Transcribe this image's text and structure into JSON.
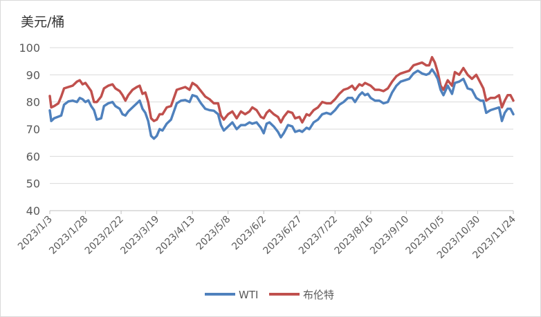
{
  "chart_data": {
    "type": "line",
    "y_unit_label": "美元/桶",
    "ylim": [
      40,
      100
    ],
    "yticks": [
      40,
      50,
      60,
      70,
      80,
      90,
      100
    ],
    "grid": "horizontal",
    "legend_position": "bottom",
    "x_tick_labels": [
      "2023/1/3",
      "2023/1/28",
      "2023/2/22",
      "2023/3/19",
      "2023/4/13",
      "2023/5/8",
      "2023/6/2",
      "2023/6/27",
      "2023/7/22",
      "2023/8/16",
      "2023/9/10",
      "2023/10/5",
      "2023/10/30",
      "2023/11/24"
    ],
    "series": [
      {
        "name": "WTI",
        "color": "#4f81bd",
        "points": [
          [
            "2023/1/3",
            76.9
          ],
          [
            "2023/1/4",
            73.0
          ],
          [
            "2023/1/6",
            74.0
          ],
          [
            "2023/1/9",
            74.6
          ],
          [
            "2023/1/11",
            75.0
          ],
          [
            "2023/1/13",
            79.0
          ],
          [
            "2023/1/16",
            80.2
          ],
          [
            "2023/1/19",
            80.5
          ],
          [
            "2023/1/22",
            80.0
          ],
          [
            "2023/1/24",
            81.5
          ],
          [
            "2023/1/26",
            81.0
          ],
          [
            "2023/1/28",
            80.0
          ],
          [
            "2023/1/30",
            80.6
          ],
          [
            "2023/2/1",
            78.5
          ],
          [
            "2023/2/3",
            77.0
          ],
          [
            "2023/2/5",
            73.5
          ],
          [
            "2023/2/8",
            74.0
          ],
          [
            "2023/2/10",
            78.5
          ],
          [
            "2023/2/13",
            79.5
          ],
          [
            "2023/2/16",
            80.0
          ],
          [
            "2023/2/18",
            78.5
          ],
          [
            "2023/2/21",
            77.5
          ],
          [
            "2023/2/23",
            75.5
          ],
          [
            "2023/2/25",
            75.0
          ],
          [
            "2023/2/27",
            76.5
          ],
          [
            "2023/3/2",
            78.0
          ],
          [
            "2023/3/5",
            79.5
          ],
          [
            "2023/3/7",
            80.5
          ],
          [
            "2023/3/9",
            77.5
          ],
          [
            "2023/3/11",
            76.0
          ],
          [
            "2023/3/13",
            73.0
          ],
          [
            "2023/3/15",
            67.5
          ],
          [
            "2023/3/17",
            66.5
          ],
          [
            "2023/3/19",
            67.5
          ],
          [
            "2023/3/21",
            70.0
          ],
          [
            "2023/3/23",
            69.5
          ],
          [
            "2023/3/26",
            72.0
          ],
          [
            "2023/3/29",
            73.5
          ],
          [
            "2023/4/2",
            79.5
          ],
          [
            "2023/4/5",
            80.5
          ],
          [
            "2023/4/8",
            80.7
          ],
          [
            "2023/4/11",
            80.0
          ],
          [
            "2023/4/13",
            82.5
          ],
          [
            "2023/4/16",
            82.0
          ],
          [
            "2023/4/19",
            79.5
          ],
          [
            "2023/4/22",
            77.5
          ],
          [
            "2023/4/25",
            77.0
          ],
          [
            "2023/4/28",
            76.8
          ],
          [
            "2023/5/1",
            75.5
          ],
          [
            "2023/5/3",
            71.5
          ],
          [
            "2023/5/5",
            69.5
          ],
          [
            "2023/5/8",
            71.0
          ],
          [
            "2023/5/11",
            72.5
          ],
          [
            "2023/5/14",
            70.0
          ],
          [
            "2023/5/17",
            71.5
          ],
          [
            "2023/5/20",
            71.5
          ],
          [
            "2023/5/23",
            72.5
          ],
          [
            "2023/5/25",
            72.0
          ],
          [
            "2023/5/28",
            72.5
          ],
          [
            "2023/5/31",
            70.5
          ],
          [
            "2023/6/2",
            68.5
          ],
          [
            "2023/6/4",
            72.0
          ],
          [
            "2023/6/6",
            72.5
          ],
          [
            "2023/6/9",
            71.0
          ],
          [
            "2023/6/12",
            69.0
          ],
          [
            "2023/6/14",
            67.0
          ],
          [
            "2023/6/16",
            68.5
          ],
          [
            "2023/6/19",
            71.5
          ],
          [
            "2023/6/22",
            71.0
          ],
          [
            "2023/6/24",
            69.0
          ],
          [
            "2023/6/27",
            69.5
          ],
          [
            "2023/6/29",
            69.0
          ],
          [
            "2023/7/2",
            70.5
          ],
          [
            "2023/7/4",
            70.0
          ],
          [
            "2023/7/7",
            72.5
          ],
          [
            "2023/7/10",
            73.5
          ],
          [
            "2023/7/13",
            75.5
          ],
          [
            "2023/7/16",
            76.0
          ],
          [
            "2023/7/19",
            75.5
          ],
          [
            "2023/7/22",
            77.0
          ],
          [
            "2023/7/25",
            79.0
          ],
          [
            "2023/7/28",
            80.0
          ],
          [
            "2023/7/31",
            81.5
          ],
          [
            "2023/8/3",
            81.5
          ],
          [
            "2023/8/5",
            80.0
          ],
          [
            "2023/8/8",
            82.5
          ],
          [
            "2023/8/10",
            83.5
          ],
          [
            "2023/8/12",
            82.5
          ],
          [
            "2023/8/14",
            83.0
          ],
          [
            "2023/8/16",
            81.5
          ],
          [
            "2023/8/19",
            80.5
          ],
          [
            "2023/8/22",
            80.5
          ],
          [
            "2023/8/25",
            79.5
          ],
          [
            "2023/8/28",
            80.0
          ],
          [
            "2023/8/31",
            83.5
          ],
          [
            "2023/9/3",
            86.0
          ],
          [
            "2023/9/6",
            87.5
          ],
          [
            "2023/9/9",
            88.0
          ],
          [
            "2023/9/12",
            88.5
          ],
          [
            "2023/9/15",
            90.5
          ],
          [
            "2023/9/18",
            91.5
          ],
          [
            "2023/9/21",
            90.5
          ],
          [
            "2023/9/24",
            90.0
          ],
          [
            "2023/9/26",
            90.5
          ],
          [
            "2023/9/28",
            92.0
          ],
          [
            "2023/9/30",
            90.5
          ],
          [
            "2023/10/2",
            88.5
          ],
          [
            "2023/10/4",
            84.5
          ],
          [
            "2023/10/6",
            82.5
          ],
          [
            "2023/10/9",
            86.0
          ],
          [
            "2023/10/12",
            83.0
          ],
          [
            "2023/10/14",
            87.0
          ],
          [
            "2023/10/17",
            87.5
          ],
          [
            "2023/10/20",
            88.5
          ],
          [
            "2023/10/23",
            85.0
          ],
          [
            "2023/10/26",
            84.5
          ],
          [
            "2023/10/29",
            81.5
          ],
          [
            "2023/11/1",
            80.5
          ],
          [
            "2023/11/3",
            80.5
          ],
          [
            "2023/11/5",
            76.0
          ],
          [
            "2023/11/8",
            77.0
          ],
          [
            "2023/11/11",
            77.5
          ],
          [
            "2023/11/14",
            78.0
          ],
          [
            "2023/11/16",
            73.0
          ],
          [
            "2023/11/18",
            76.0
          ],
          [
            "2023/11/20",
            77.5
          ],
          [
            "2023/11/22",
            77.5
          ],
          [
            "2023/11/24",
            75.5
          ]
        ]
      },
      {
        "name": "布伦特",
        "color": "#c0504d",
        "points": [
          [
            "2023/1/3",
            82.2
          ],
          [
            "2023/1/4",
            78.0
          ],
          [
            "2023/1/6",
            78.5
          ],
          [
            "2023/1/9",
            79.5
          ],
          [
            "2023/1/11",
            82.0
          ],
          [
            "2023/1/13",
            85.0
          ],
          [
            "2023/1/16",
            85.5
          ],
          [
            "2023/1/19",
            86.0
          ],
          [
            "2023/1/22",
            87.5
          ],
          [
            "2023/1/24",
            88.0
          ],
          [
            "2023/1/26",
            86.5
          ],
          [
            "2023/1/28",
            87.0
          ],
          [
            "2023/1/30",
            85.5
          ],
          [
            "2023/2/1",
            84.0
          ],
          [
            "2023/2/3",
            80.0
          ],
          [
            "2023/2/5",
            80.0
          ],
          [
            "2023/2/8",
            82.0
          ],
          [
            "2023/2/10",
            85.0
          ],
          [
            "2023/2/13",
            86.0
          ],
          [
            "2023/2/16",
            86.5
          ],
          [
            "2023/2/18",
            85.0
          ],
          [
            "2023/2/21",
            84.0
          ],
          [
            "2023/2/23",
            82.5
          ],
          [
            "2023/2/25",
            80.5
          ],
          [
            "2023/2/27",
            82.5
          ],
          [
            "2023/3/2",
            84.5
          ],
          [
            "2023/3/5",
            85.5
          ],
          [
            "2023/3/7",
            86.0
          ],
          [
            "2023/3/9",
            83.0
          ],
          [
            "2023/3/11",
            83.5
          ],
          [
            "2023/3/13",
            80.0
          ],
          [
            "2023/3/15",
            74.0
          ],
          [
            "2023/3/17",
            73.0
          ],
          [
            "2023/3/19",
            73.5
          ],
          [
            "2023/3/21",
            75.5
          ],
          [
            "2023/3/23",
            75.5
          ],
          [
            "2023/3/26",
            78.0
          ],
          [
            "2023/3/29",
            78.5
          ],
          [
            "2023/4/2",
            84.5
          ],
          [
            "2023/4/5",
            85.0
          ],
          [
            "2023/4/8",
            85.5
          ],
          [
            "2023/4/11",
            84.5
          ],
          [
            "2023/4/13",
            87.0
          ],
          [
            "2023/4/16",
            86.0
          ],
          [
            "2023/4/19",
            84.0
          ],
          [
            "2023/4/22",
            82.0
          ],
          [
            "2023/4/25",
            81.0
          ],
          [
            "2023/4/28",
            79.5
          ],
          [
            "2023/5/1",
            79.5
          ],
          [
            "2023/5/3",
            75.0
          ],
          [
            "2023/5/5",
            73.5
          ],
          [
            "2023/5/8",
            75.5
          ],
          [
            "2023/5/11",
            76.5
          ],
          [
            "2023/5/14",
            74.0
          ],
          [
            "2023/5/17",
            76.5
          ],
          [
            "2023/5/20",
            75.5
          ],
          [
            "2023/5/23",
            76.5
          ],
          [
            "2023/5/25",
            78.0
          ],
          [
            "2023/5/28",
            77.0
          ],
          [
            "2023/5/31",
            74.5
          ],
          [
            "2023/6/2",
            74.0
          ],
          [
            "2023/6/4",
            76.0
          ],
          [
            "2023/6/6",
            77.0
          ],
          [
            "2023/6/9",
            75.5
          ],
          [
            "2023/6/12",
            74.5
          ],
          [
            "2023/6/14",
            72.5
          ],
          [
            "2023/6/16",
            74.5
          ],
          [
            "2023/6/19",
            76.5
          ],
          [
            "2023/6/22",
            76.0
          ],
          [
            "2023/6/24",
            74.0
          ],
          [
            "2023/6/27",
            74.5
          ],
          [
            "2023/6/29",
            72.5
          ],
          [
            "2023/7/2",
            75.5
          ],
          [
            "2023/7/4",
            75.0
          ],
          [
            "2023/7/7",
            77.0
          ],
          [
            "2023/7/10",
            78.0
          ],
          [
            "2023/7/13",
            80.0
          ],
          [
            "2023/7/16",
            79.5
          ],
          [
            "2023/7/19",
            79.5
          ],
          [
            "2023/7/22",
            81.0
          ],
          [
            "2023/7/25",
            83.0
          ],
          [
            "2023/7/28",
            84.5
          ],
          [
            "2023/7/31",
            85.0
          ],
          [
            "2023/8/3",
            86.0
          ],
          [
            "2023/8/5",
            84.5
          ],
          [
            "2023/8/8",
            86.5
          ],
          [
            "2023/8/10",
            86.0
          ],
          [
            "2023/8/12",
            87.0
          ],
          [
            "2023/8/14",
            86.5
          ],
          [
            "2023/8/16",
            86.0
          ],
          [
            "2023/8/19",
            84.5
          ],
          [
            "2023/8/22",
            84.5
          ],
          [
            "2023/8/25",
            84.0
          ],
          [
            "2023/8/28",
            85.0
          ],
          [
            "2023/8/31",
            87.5
          ],
          [
            "2023/9/3",
            89.5
          ],
          [
            "2023/9/6",
            90.5
          ],
          [
            "2023/9/9",
            91.0
          ],
          [
            "2023/9/12",
            91.5
          ],
          [
            "2023/9/15",
            93.5
          ],
          [
            "2023/9/18",
            94.0
          ],
          [
            "2023/9/21",
            94.5
          ],
          [
            "2023/9/24",
            93.5
          ],
          [
            "2023/9/26",
            93.5
          ],
          [
            "2023/9/28",
            96.5
          ],
          [
            "2023/9/30",
            94.5
          ],
          [
            "2023/10/2",
            91.0
          ],
          [
            "2023/10/4",
            86.0
          ],
          [
            "2023/10/6",
            84.5
          ],
          [
            "2023/10/9",
            88.0
          ],
          [
            "2023/10/12",
            86.0
          ],
          [
            "2023/10/14",
            91.0
          ],
          [
            "2023/10/17",
            90.0
          ],
          [
            "2023/10/20",
            92.5
          ],
          [
            "2023/10/23",
            90.0
          ],
          [
            "2023/10/26",
            88.5
          ],
          [
            "2023/10/29",
            90.0
          ],
          [
            "2023/11/1",
            87.0
          ],
          [
            "2023/11/3",
            85.0
          ],
          [
            "2023/11/5",
            80.5
          ],
          [
            "2023/11/8",
            81.5
          ],
          [
            "2023/11/11",
            81.5
          ],
          [
            "2023/11/14",
            82.5
          ],
          [
            "2023/11/16",
            78.0
          ],
          [
            "2023/11/18",
            80.5
          ],
          [
            "2023/11/20",
            82.5
          ],
          [
            "2023/11/22",
            82.5
          ],
          [
            "2023/11/24",
            80.5
          ]
        ]
      }
    ]
  }
}
